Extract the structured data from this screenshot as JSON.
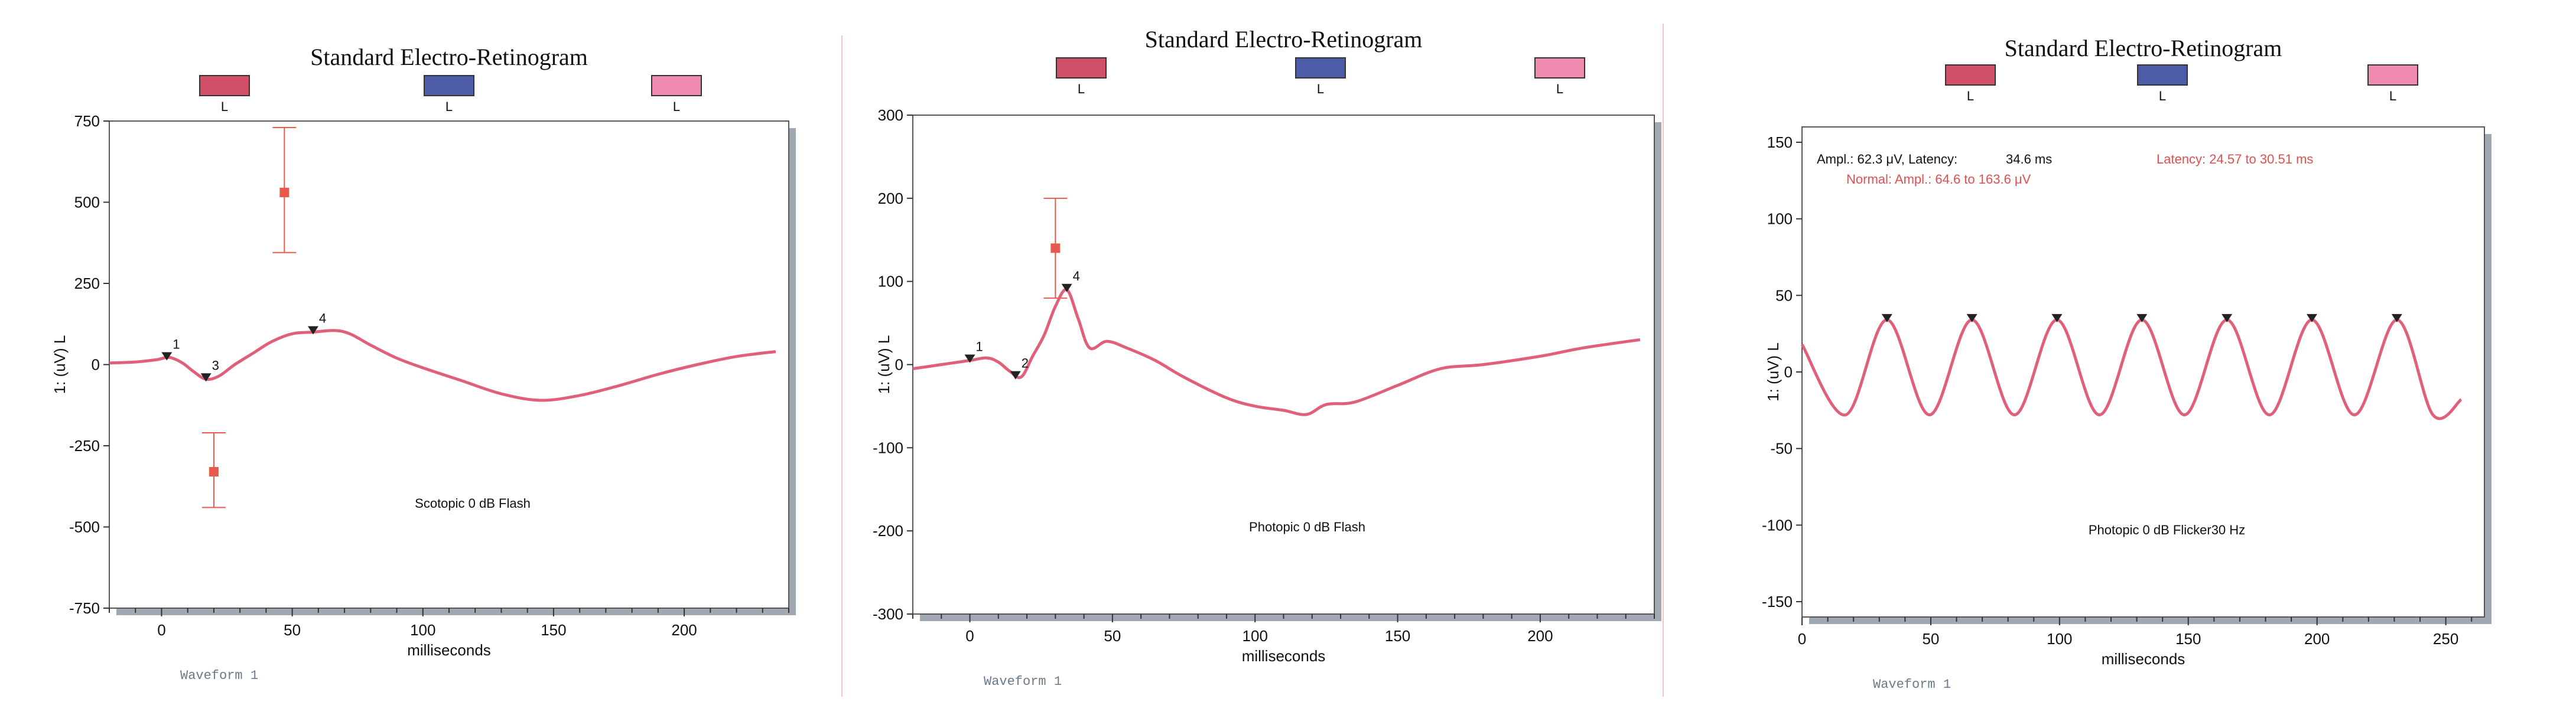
{
  "colors": {
    "trace": "#e0607a",
    "swatch_red": "#d05068",
    "swatch_blue": "#4c5ca8",
    "swatch_pink": "#ee8ab0",
    "marker": "#e95a4c",
    "note_red": "#e05050",
    "frame_shadow": "#a0a8b4"
  },
  "chart_data": [
    {
      "type": "line",
      "title": "Standard Electro-Retinogram",
      "legend": [
        "L",
        "L",
        "L"
      ],
      "xlabel": "milliseconds",
      "ylabel": "1: (uV) L",
      "xlim": [
        -20,
        240
      ],
      "ylim": [
        -750,
        750
      ],
      "xticks": [
        0,
        50,
        100,
        150,
        200
      ],
      "yticks": [
        -750,
        -500,
        -250,
        0,
        250,
        500,
        750
      ],
      "annotation": "Scotopic 0 dB Flash",
      "footer": "Waveform 1",
      "series": [
        {
          "x": [
            -20,
            -10,
            -2,
            3,
            8,
            12,
            17,
            22,
            28,
            35,
            42,
            50,
            58,
            66,
            72,
            80,
            90,
            100,
            115,
            130,
            145,
            160,
            175,
            190,
            205,
            220,
            235
          ],
          "y": [
            5,
            8,
            15,
            22,
            5,
            -20,
            -45,
            -35,
            0,
            35,
            70,
            95,
            100,
            105,
            95,
            60,
            20,
            -10,
            -50,
            -90,
            -110,
            -95,
            -65,
            -30,
            0,
            25,
            40
          ]
        }
      ],
      "markers": [
        {
          "x": 2,
          "y": 20,
          "label": "1"
        },
        {
          "x": 17,
          "y": -45,
          "label": "3"
        },
        {
          "x": 58,
          "y": 100,
          "label": "4"
        }
      ],
      "normal_ranges": [
        {
          "x": 47,
          "y": 530,
          "low": 345,
          "high": 730
        },
        {
          "x": 20,
          "y": -330,
          "low": -440,
          "high": -210
        }
      ]
    },
    {
      "type": "line",
      "title": "Standard Electro-Retinogram",
      "legend": [
        "L",
        "L",
        "L"
      ],
      "xlabel": "milliseconds",
      "ylabel": "1: (uV) L",
      "xlim": [
        -20,
        240
      ],
      "ylim": [
        -300,
        300
      ],
      "xticks": [
        0,
        50,
        100,
        150,
        200
      ],
      "yticks": [
        -300,
        -200,
        -100,
        0,
        100,
        200,
        300
      ],
      "annotation": "Photopic 0 dB Flash",
      "footer": "Waveform 1",
      "series": [
        {
          "x": [
            -20,
            -10,
            0,
            6,
            10,
            14,
            18,
            22,
            26,
            30,
            34,
            38,
            42,
            48,
            55,
            65,
            75,
            90,
            100,
            110,
            118,
            125,
            135,
            150,
            165,
            180,
            200,
            215,
            235
          ],
          "y": [
            -5,
            0,
            5,
            8,
            3,
            -8,
            -15,
            10,
            35,
            70,
            90,
            55,
            20,
            28,
            20,
            5,
            -15,
            -40,
            -50,
            -55,
            -60,
            -48,
            -45,
            -25,
            -5,
            0,
            10,
            20,
            30
          ]
        }
      ],
      "markers": [
        {
          "x": 0,
          "y": 5,
          "label": "1"
        },
        {
          "x": 16,
          "y": -15,
          "label": "2"
        },
        {
          "x": 34,
          "y": 90,
          "label": "4"
        }
      ],
      "normal_ranges": [
        {
          "x": 30,
          "y": 140,
          "low": 80,
          "high": 200
        }
      ]
    },
    {
      "type": "line",
      "title": "Standard Electro-Retinogram",
      "legend": [
        "L",
        "L",
        "L"
      ],
      "xlabel": "milliseconds",
      "ylabel": "1: (uV) L",
      "xlim": [
        0,
        265
      ],
      "ylim": [
        -160,
        160
      ],
      "xticks": [
        0,
        50,
        100,
        150,
        200,
        250
      ],
      "yticks": [
        -150,
        -100,
        -50,
        0,
        50,
        100,
        150
      ],
      "annotation": "Photopic 0 dB Flicker30 Hz",
      "footer": "Waveform 1",
      "result_label": "Ampl.: 62.3 μV, Latency:",
      "result_value": "34.6 ms",
      "normal_ampl": "Normal: Ampl.: 64.6 to 163.6 μV",
      "normal_latency": "Latency: 24.57 to 30.51 ms",
      "peak_times": [
        33,
        66,
        99,
        132,
        165,
        198,
        231
      ],
      "peak_value": 34,
      "trough_value": -28,
      "start_value": 18,
      "end_value": -18,
      "x_end": 256
    }
  ]
}
